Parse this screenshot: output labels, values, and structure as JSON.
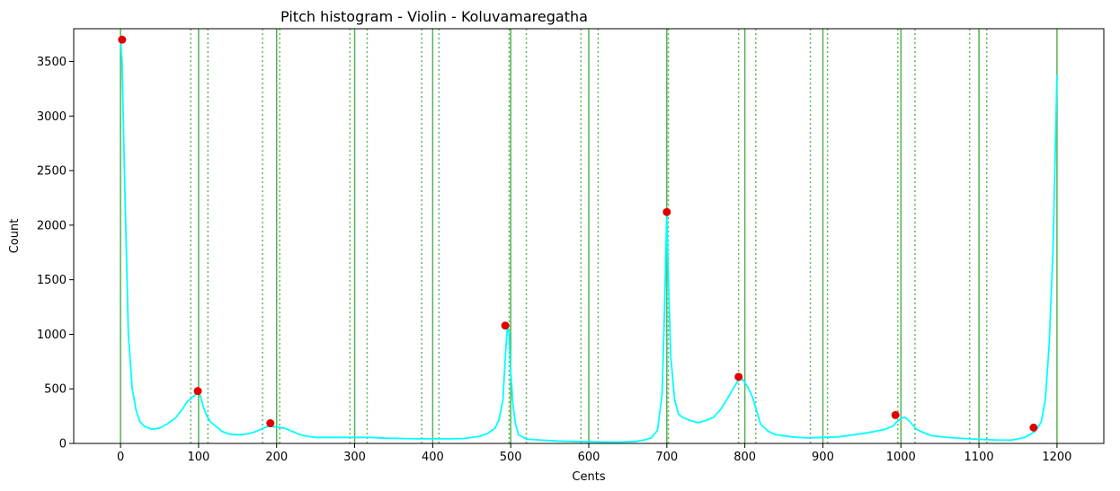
{
  "chart_data": {
    "type": "line",
    "title": "Pitch histogram - Violin - Koluvamaregatha",
    "xlabel": "Cents",
    "ylabel": "Count",
    "xlim": [
      -60,
      1260
    ],
    "ylim": [
      0,
      3800
    ],
    "x_ticks": [
      0,
      100,
      200,
      300,
      400,
      500,
      600,
      700,
      800,
      900,
      1000,
      1100,
      1200
    ],
    "y_ticks": [
      0,
      500,
      1000,
      1500,
      2000,
      2500,
      3000,
      3500
    ],
    "series": [
      {
        "color": "#00ffff",
        "x": [
          0,
          2,
          5,
          10,
          15,
          20,
          25,
          30,
          40,
          50,
          60,
          70,
          80,
          85,
          90,
          95,
          100,
          103,
          106,
          110,
          115,
          120,
          130,
          140,
          150,
          160,
          170,
          180,
          190,
          200,
          210,
          220,
          230,
          240,
          250,
          260,
          270,
          280,
          290,
          300,
          320,
          340,
          360,
          380,
          400,
          420,
          440,
          460,
          470,
          480,
          485,
          490,
          492,
          494,
          496,
          498,
          500,
          503,
          506,
          510,
          520,
          540,
          560,
          580,
          600,
          620,
          640,
          660,
          670,
          680,
          688,
          694,
          697,
          699,
          700,
          702,
          705,
          710,
          715,
          720,
          730,
          740,
          750,
          760,
          770,
          780,
          785,
          790,
          795,
          800,
          805,
          810,
          815,
          820,
          830,
          840,
          860,
          880,
          900,
          920,
          940,
          960,
          980,
          990,
          995,
          1000,
          1005,
          1010,
          1015,
          1020,
          1030,
          1040,
          1060,
          1080,
          1100,
          1120,
          1140,
          1150,
          1160,
          1170,
          1175,
          1180,
          1185,
          1190,
          1195,
          1200
        ],
        "y": [
          3700,
          3500,
          2500,
          1000,
          500,
          300,
          200,
          160,
          130,
          140,
          180,
          230,
          320,
          380,
          410,
          440,
          480,
          420,
          340,
          260,
          200,
          170,
          110,
          85,
          80,
          85,
          100,
          130,
          160,
          150,
          140,
          110,
          80,
          65,
          55,
          55,
          55,
          55,
          55,
          55,
          55,
          48,
          45,
          42,
          42,
          42,
          45,
          65,
          90,
          140,
          220,
          400,
          650,
          900,
          1080,
          1000,
          650,
          350,
          180,
          80,
          40,
          30,
          22,
          18,
          15,
          12,
          12,
          18,
          30,
          50,
          120,
          450,
          1200,
          1800,
          2120,
          1500,
          800,
          400,
          270,
          240,
          210,
          190,
          210,
          240,
          320,
          440,
          500,
          560,
          600,
          560,
          500,
          420,
          300,
          180,
          110,
          80,
          60,
          50,
          55,
          60,
          80,
          100,
          130,
          160,
          200,
          230,
          240,
          210,
          170,
          130,
          95,
          70,
          55,
          45,
          38,
          32,
          30,
          40,
          60,
          100,
          140,
          200,
          400,
          900,
          1800,
          3380
        ]
      }
    ],
    "peaks": {
      "color": "#e00000",
      "x": [
        2,
        99,
        192,
        493,
        700,
        792,
        993,
        1170
      ],
      "y": [
        3700,
        480,
        185,
        1080,
        2120,
        610,
        260,
        145
      ]
    },
    "reference_lines": {
      "color": "#2ca02c",
      "solid": [
        0,
        100,
        200,
        300,
        400,
        500,
        600,
        700,
        800,
        900,
        1000,
        1100,
        1200
      ],
      "dotted": [
        90,
        112,
        182,
        204,
        294,
        316,
        386,
        408,
        498,
        520,
        590,
        612,
        702,
        792,
        814,
        884,
        906,
        996,
        1018,
        1088,
        1110
      ]
    }
  }
}
